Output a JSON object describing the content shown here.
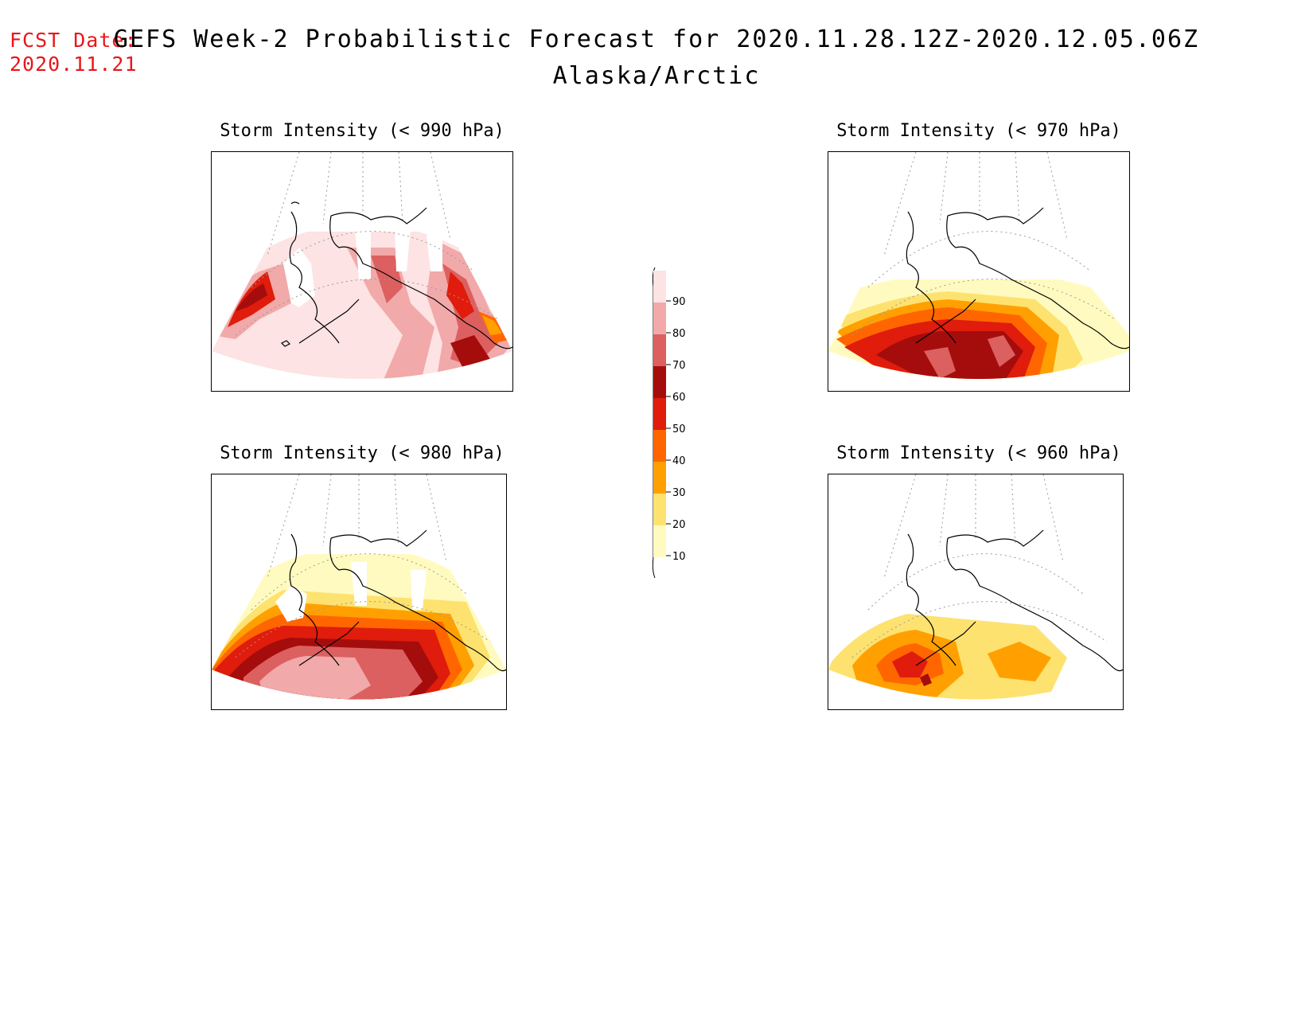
{
  "header": {
    "fcst_label": "FCST Date:",
    "fcst_date": "2020.11.21",
    "title": "GEFS Week-2 Probabilistic Forecast for 2020.11.28.12Z-2020.12.05.06Z",
    "subtitle": "Alaska/Arctic"
  },
  "panels": [
    {
      "id": "p990",
      "title": "Storm Intensity (< 990 hPa)"
    },
    {
      "id": "p970",
      "title": "Storm Intensity (< 970 hPa)"
    },
    {
      "id": "p980",
      "title": "Storm Intensity (< 980 hPa)"
    },
    {
      "id": "p960",
      "title": "Storm Intensity (< 960 hPa)"
    }
  ],
  "legend": {
    "labels": [
      "90",
      "80",
      "70",
      "60",
      "50",
      "40",
      "30",
      "20",
      "10"
    ],
    "colors": [
      "#fde3e3",
      "#f1a9a9",
      "#dc6060",
      "#a50d0d",
      "#e01c0c",
      "#ff6600",
      "#ffa000",
      "#fde270",
      "#fffbc0"
    ]
  },
  "colors": {
    "fcst_text": "#e8161b",
    "coast": "#000000",
    "gridline": "#9a9a9a"
  }
}
